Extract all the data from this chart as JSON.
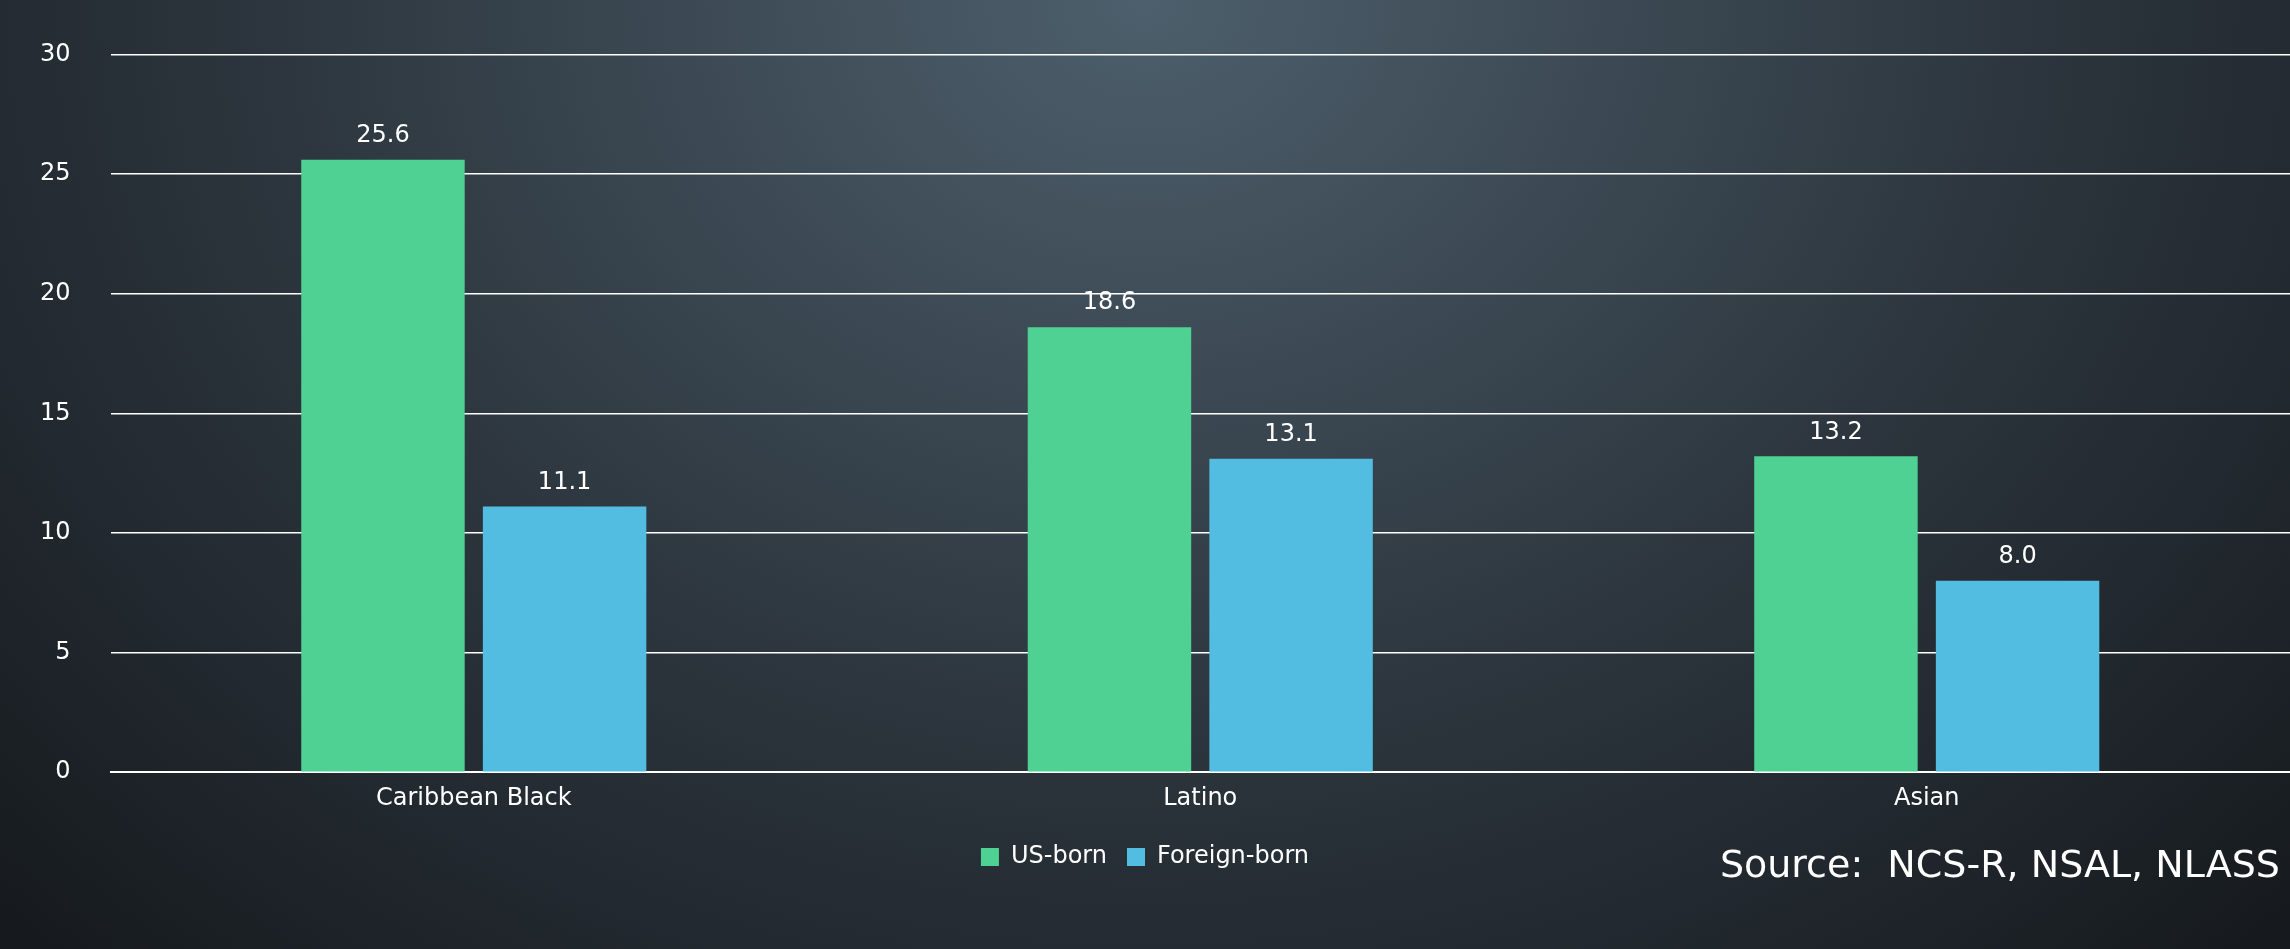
{
  "chart_data": {
    "type": "bar",
    "categories": [
      "Caribbean Black",
      "Latino",
      "Asian"
    ],
    "series": [
      {
        "name": "US-born",
        "color": "#4fd194",
        "values": [
          25.6,
          18.6,
          13.2
        ],
        "value_labels": [
          "25.6",
          "18.6",
          "13.2"
        ]
      },
      {
        "name": "Foreign-born",
        "color": "#52bde0",
        "values": [
          11.1,
          13.1,
          8.0
        ],
        "value_labels": [
          "11.1",
          "13.1",
          "8.0"
        ]
      }
    ],
    "ylim": [
      0,
      30
    ],
    "yticks": [
      0,
      5,
      10,
      15,
      20,
      25,
      30
    ],
    "grid": "y",
    "legend": "bottom",
    "annotations": [
      "Source:  NCS-R, NSAL, NLASS"
    ]
  }
}
